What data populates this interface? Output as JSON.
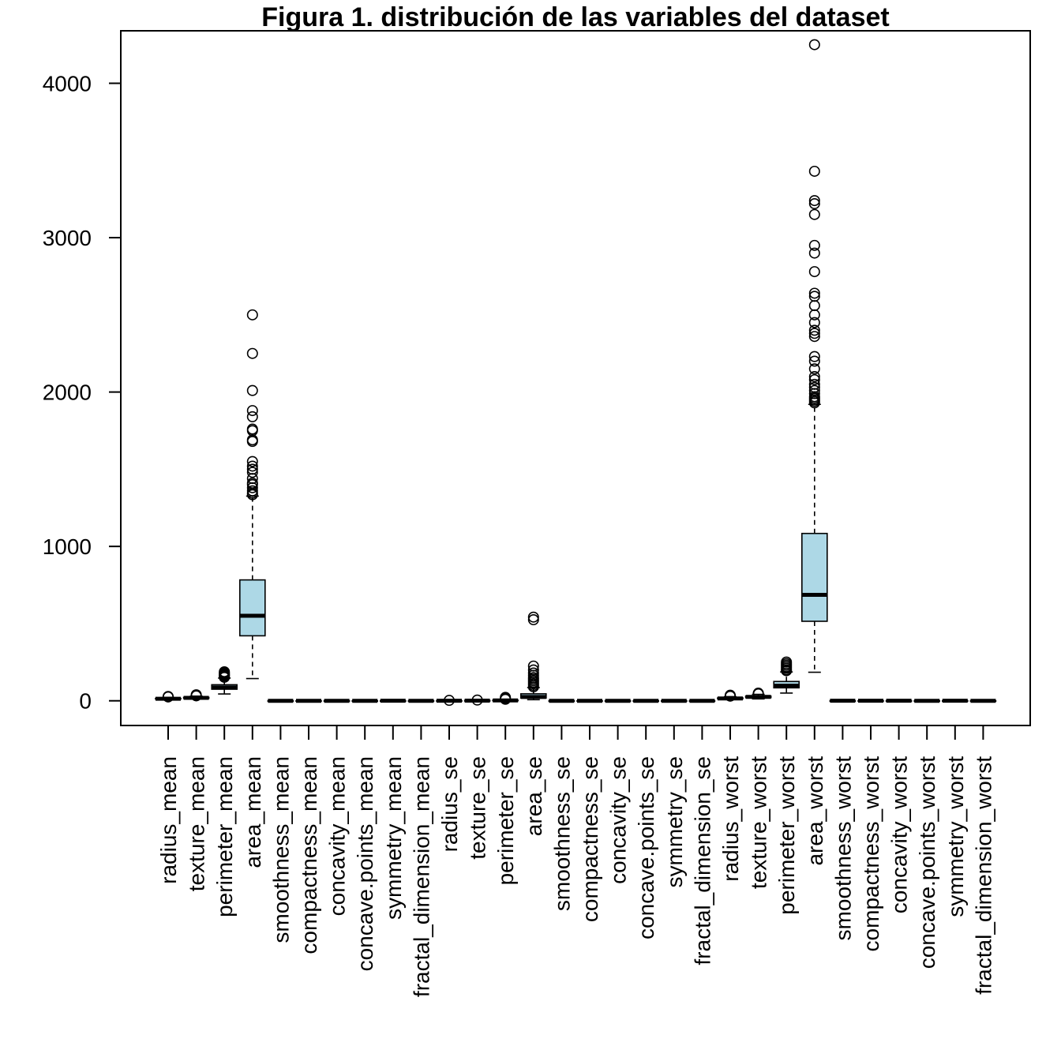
{
  "chart_data": {
    "type": "boxplot",
    "title": "Figura 1. distribución de las variables del dataset",
    "xlabel": "",
    "ylabel": "",
    "ylim": [
      -160,
      4340
    ],
    "yticks": [
      0,
      1000,
      2000,
      3000,
      4000
    ],
    "grid": false,
    "legend": "none",
    "box_fill": "#ADD8E6",
    "categories": [
      "radius_mean",
      "texture_mean",
      "perimeter_mean",
      "area_mean",
      "smoothness_mean",
      "compactness_mean",
      "concavity_mean",
      "concave.points_mean",
      "symmetry_mean",
      "fractal_dimension_mean",
      "radius_se",
      "texture_se",
      "perimeter_se",
      "area_se",
      "smoothness_se",
      "compactness_se",
      "concavity_se",
      "concave.points_se",
      "symmetry_se",
      "fractal_dimension_se",
      "radius_worst",
      "texture_worst",
      "perimeter_worst",
      "area_worst",
      "smoothness_worst",
      "compactness_worst",
      "concavity_worst",
      "concave.points_worst",
      "symmetry_worst",
      "fractal_dimension_worst"
    ],
    "boxes": [
      {
        "min": 7,
        "q1": 11.7,
        "median": 13.4,
        "q3": 15.8,
        "max": 22,
        "outliers": [
          25,
          28
        ]
      },
      {
        "min": 10,
        "q1": 16.2,
        "median": 18.8,
        "q3": 21.8,
        "max": 30,
        "outliers": [
          32,
          34,
          39
        ]
      },
      {
        "min": 44,
        "q1": 75,
        "median": 86,
        "q3": 104,
        "max": 147,
        "outliers": [
          152,
          160,
          165,
          170,
          175,
          182,
          188
        ]
      },
      {
        "min": 144,
        "q1": 421,
        "median": 551,
        "q3": 783,
        "max": 1326,
        "outliers": [
          1335,
          1345,
          1360,
          1380,
          1400,
          1410,
          1440,
          1480,
          1500,
          1520,
          1550,
          1680,
          1690,
          1750,
          1760,
          1840,
          1880,
          2010,
          2250,
          2500
        ]
      },
      {
        "min": 0.05,
        "q1": 0.086,
        "median": 0.096,
        "q3": 0.105,
        "max": 0.13,
        "outliers": []
      },
      {
        "min": 0.02,
        "q1": 0.065,
        "median": 0.093,
        "q3": 0.13,
        "max": 0.23,
        "outliers": []
      },
      {
        "min": 0,
        "q1": 0.03,
        "median": 0.062,
        "q3": 0.13,
        "max": 0.28,
        "outliers": []
      },
      {
        "min": 0,
        "q1": 0.02,
        "median": 0.034,
        "q3": 0.074,
        "max": 0.15,
        "outliers": []
      },
      {
        "min": 0.11,
        "q1": 0.16,
        "median": 0.18,
        "q3": 0.2,
        "max": 0.25,
        "outliers": []
      },
      {
        "min": 0.05,
        "q1": 0.058,
        "median": 0.062,
        "q3": 0.066,
        "max": 0.08,
        "outliers": []
      },
      {
        "min": 0.11,
        "q1": 0.23,
        "median": 0.32,
        "q3": 0.48,
        "max": 0.85,
        "outliers": [
          2.87
        ]
      },
      {
        "min": 0.36,
        "q1": 0.83,
        "median": 1.11,
        "q3": 1.47,
        "max": 2.4,
        "outliers": [
          4.9
        ]
      },
      {
        "min": 0.76,
        "q1": 1.6,
        "median": 2.29,
        "q3": 3.36,
        "max": 6,
        "outliers": [
          10,
          15,
          21.98
        ]
      },
      {
        "min": 6.8,
        "q1": 17.9,
        "median": 24.5,
        "q3": 45.2,
        "max": 86,
        "outliers": [
          90,
          100,
          110,
          120,
          130,
          140,
          150,
          165,
          180,
          200,
          225,
          525,
          542
        ]
      },
      {
        "min": 0.002,
        "q1": 0.005,
        "median": 0.006,
        "q3": 0.008,
        "max": 0.012,
        "outliers": []
      },
      {
        "min": 0.002,
        "q1": 0.013,
        "median": 0.02,
        "q3": 0.032,
        "max": 0.06,
        "outliers": []
      },
      {
        "min": 0,
        "q1": 0.015,
        "median": 0.026,
        "q3": 0.042,
        "max": 0.08,
        "outliers": []
      },
      {
        "min": 0,
        "q1": 0.008,
        "median": 0.011,
        "q3": 0.015,
        "max": 0.025,
        "outliers": []
      },
      {
        "min": 0.008,
        "q1": 0.015,
        "median": 0.019,
        "q3": 0.023,
        "max": 0.035,
        "outliers": []
      },
      {
        "min": 0.001,
        "q1": 0.002,
        "median": 0.003,
        "q3": 0.005,
        "max": 0.008,
        "outliers": []
      },
      {
        "min": 7.9,
        "q1": 13,
        "median": 15,
        "q3": 18.8,
        "max": 27,
        "outliers": [
          30,
          33,
          36
        ]
      },
      {
        "min": 12,
        "q1": 21,
        "median": 25.4,
        "q3": 29.7,
        "max": 42,
        "outliers": [
          45,
          47,
          49.5
        ]
      },
      {
        "min": 50,
        "q1": 84,
        "median": 97.7,
        "q3": 125,
        "max": 187,
        "outliers": [
          195,
          200,
          210,
          220,
          230,
          240,
          251
        ]
      },
      {
        "min": 185,
        "q1": 515,
        "median": 686,
        "q3": 1084,
        "max": 1920,
        "outliers": [
          1930,
          1940,
          1950,
          1960,
          1970,
          1990,
          2010,
          2030,
          2050,
          2080,
          2100,
          2150,
          2200,
          2230,
          2360,
          2380,
          2400,
          2450,
          2500,
          2560,
          2620,
          2640,
          2780,
          2900,
          2950,
          3150,
          3220,
          3240,
          3430,
          4250
        ]
      },
      {
        "min": 0.07,
        "q1": 0.117,
        "median": 0.131,
        "q3": 0.146,
        "max": 0.19,
        "outliers": []
      },
      {
        "min": 0.03,
        "q1": 0.147,
        "median": 0.212,
        "q3": 0.339,
        "max": 0.62,
        "outliers": []
      },
      {
        "min": 0,
        "q1": 0.115,
        "median": 0.227,
        "q3": 0.383,
        "max": 0.79,
        "outliers": []
      },
      {
        "min": 0,
        "q1": 0.065,
        "median": 0.1,
        "q3": 0.161,
        "max": 0.29,
        "outliers": []
      },
      {
        "min": 0.16,
        "q1": 0.25,
        "median": 0.282,
        "q3": 0.318,
        "max": 0.42,
        "outliers": []
      },
      {
        "min": 0.055,
        "q1": 0.071,
        "median": 0.08,
        "q3": 0.092,
        "max": 0.12,
        "outliers": []
      }
    ]
  }
}
